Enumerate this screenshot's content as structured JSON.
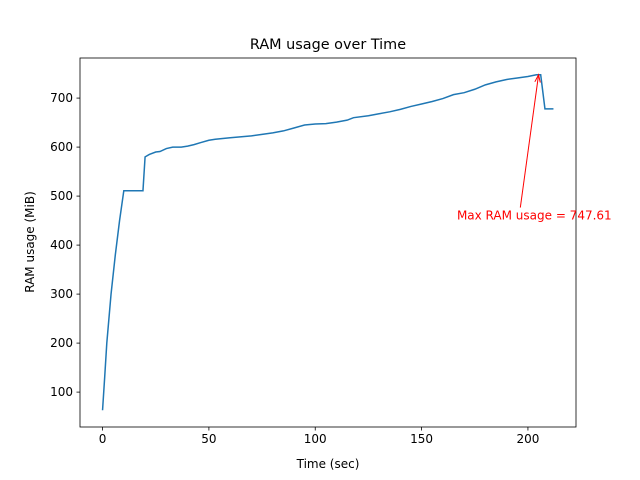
{
  "chart_data": {
    "type": "line",
    "title": "RAM usage over Time",
    "x_label": "Time (sec)",
    "y_label": "RAM usage (MiB)",
    "x": [
      0,
      1,
      2,
      4,
      6,
      8,
      10,
      19,
      20,
      22,
      25,
      27,
      30,
      33,
      37,
      40,
      43,
      46,
      50,
      53,
      60,
      70,
      75,
      80,
      85,
      90,
      95,
      100,
      105,
      110,
      115,
      118,
      125,
      130,
      135,
      140,
      145,
      150,
      155,
      160,
      165,
      170,
      175,
      180,
      185,
      190,
      195,
      200,
      204,
      206,
      208,
      212
    ],
    "series": [
      {
        "name": "RAM usage",
        "color": "#1f77b4",
        "values": [
          63,
          130,
          200,
          300,
          380,
          450,
          511,
          511,
          580,
          585,
          590,
          591,
          597,
          600,
          600,
          602,
          605,
          609,
          614,
          616,
          619,
          623,
          626,
          629,
          633,
          639,
          645,
          647,
          648,
          651,
          655,
          660,
          664,
          668,
          672,
          677,
          683,
          688,
          693,
          699,
          707,
          711,
          718,
          727,
          733,
          738,
          741,
          744,
          747.61,
          747.61,
          678,
          678
        ]
      }
    ],
    "xlim": [
      -10.6,
      222.6
    ],
    "ylim": [
      28.8,
      781.8
    ],
    "xticks": [
      0,
      50,
      100,
      150,
      200
    ],
    "yticks": [
      100,
      200,
      300,
      400,
      500,
      600,
      700
    ],
    "annotation": {
      "text": "Max RAM usage = 747.61",
      "color": "red",
      "xy": [
        205,
        747.61
      ],
      "xytext": [
        203,
        452
      ]
    }
  }
}
